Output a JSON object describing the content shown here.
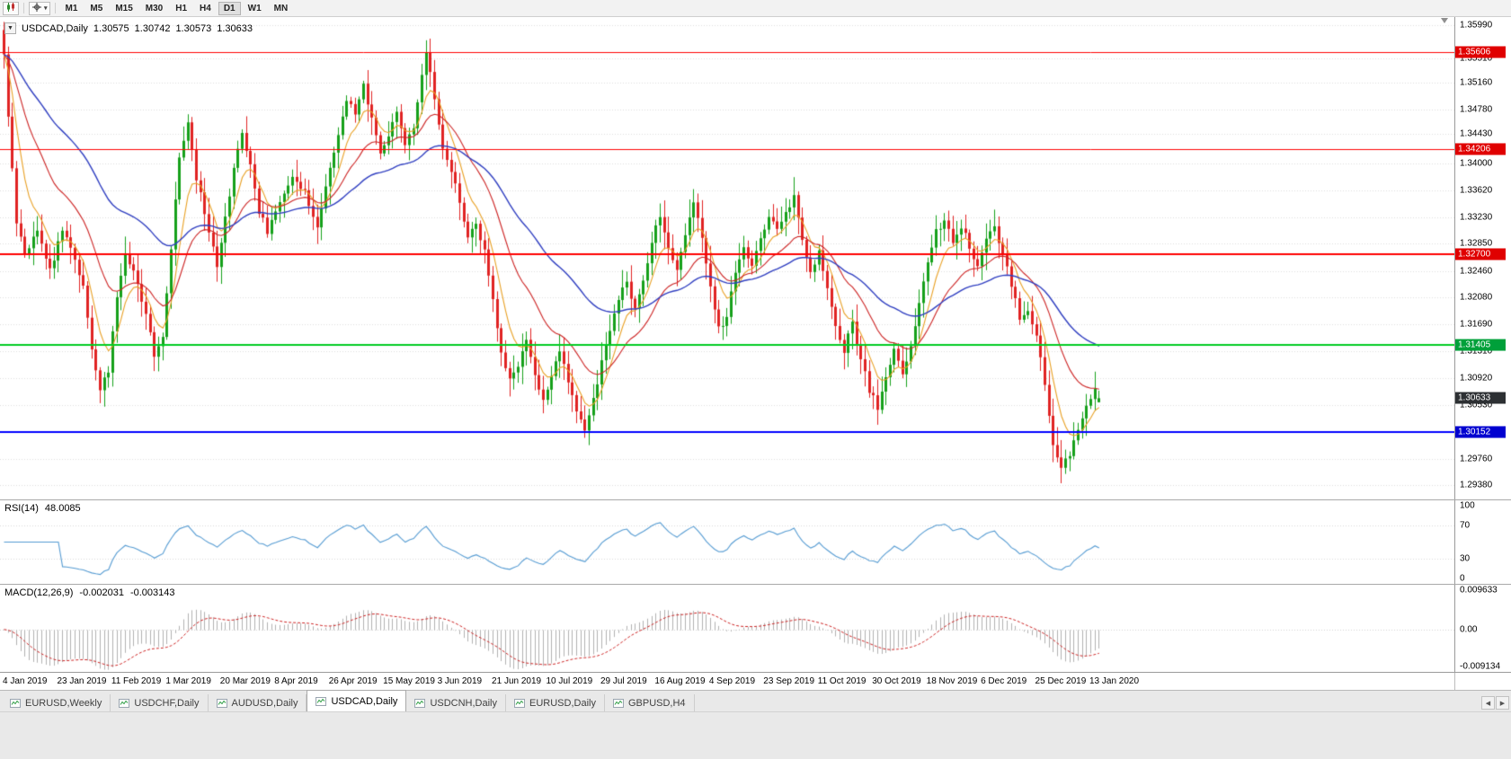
{
  "colors": {
    "up": "#15a01a",
    "down": "#e02222",
    "ma_fast": "#e8a024",
    "ma_mid": "#cc2222",
    "ma_slow": "#2f3ec0",
    "rsi_line": "#559bd2",
    "macd_hist": "#b0b0b0",
    "macd_signal": "#cc2222",
    "grid": "#dedede",
    "current_badge_bg": "#2d3033"
  },
  "toolbar": {
    "chart_button_icon": "candlestick-chart-icon",
    "crosshair_button_icon": "crosshair-icon",
    "caret": "▾",
    "timeframes": [
      "M1",
      "M5",
      "M15",
      "M30",
      "H1",
      "H4",
      "D1",
      "W1",
      "MN"
    ],
    "active_timeframe": "D1"
  },
  "price_pane": {
    "collapse_icon": "▼",
    "symbol_label": "USDCAD,Daily",
    "open": "1.30575",
    "high": "1.30742",
    "low": "1.30573",
    "close": "1.30633",
    "axis_ticks": [
      "1.35990",
      "1.35510",
      "1.35160",
      "1.34780",
      "1.34430",
      "1.34000",
      "1.33620",
      "1.33230",
      "1.32850",
      "1.32460",
      "1.32080",
      "1.31690",
      "1.31310",
      "1.30920",
      "1.30530",
      "1.29760",
      "1.29380"
    ],
    "current_price_badge": "1.30633"
  },
  "rsi_pane": {
    "label": "RSI(14)",
    "value": "48.0085",
    "axis_ticks": [
      "100",
      "70",
      "30",
      "0"
    ]
  },
  "macd_pane": {
    "label": "MACD(12,26,9)",
    "value_1": "-0.002031",
    "value_2": "-0.003143",
    "axis_ticks": [
      "0.009633",
      "0.00",
      "-0.009134"
    ],
    "range_max": 0.009633,
    "range_min": -0.009134
  },
  "date_axis": {
    "labels": [
      "4 Jan 2019",
      "23 Jan 2019",
      "11 Feb 2019",
      "1 Mar 2019",
      "20 Mar 2019",
      "8 Apr 2019",
      "26 Apr 2019",
      "15 May 2019",
      "3 Jun 2019",
      "21 Jun 2019",
      "10 Jul 2019",
      "29 Jul 2019",
      "16 Aug 2019",
      "4 Sep 2019",
      "23 Sep 2019",
      "11 Oct 2019",
      "30 Oct 2019",
      "18 Nov 2019",
      "6 Dec 2019",
      "25 Dec 2019",
      "13 Jan 2020"
    ],
    "label_every_days": 13
  },
  "tabbar": {
    "tabs": [
      {
        "label": "EURUSD,Weekly",
        "active": false
      },
      {
        "label": "USDCHF,Daily",
        "active": false
      },
      {
        "label": "AUDUSD,Daily",
        "active": false
      },
      {
        "label": "USDCAD,Daily",
        "active": true
      },
      {
        "label": "USDCNH,Daily",
        "active": false
      },
      {
        "label": "EURUSD,Daily",
        "active": false
      },
      {
        "label": "GBPUSD,H4",
        "active": false
      }
    ],
    "scroll_left": "◀",
    "scroll_right": "▶"
  },
  "chart_data": {
    "type": "candlestick",
    "title": "USDCAD,Daily",
    "x_start_label": "4 Jan 2019",
    "x_end_label": "13 Jan 2020",
    "days_total": 263,
    "y_axis": {
      "min": 1.2918,
      "max": 1.3612
    },
    "last_candle": {
      "open": 1.30575,
      "high": 1.30742,
      "low": 1.30573,
      "close": 1.30633
    },
    "price_anchors": [
      [
        0,
        1.356
      ],
      [
        1,
        1.3468
      ],
      [
        2,
        1.3392
      ],
      [
        3,
        1.332
      ],
      [
        5,
        1.3268
      ],
      [
        8,
        1.3302
      ],
      [
        11,
        1.3246
      ],
      [
        14,
        1.3308
      ],
      [
        17,
        1.3262
      ],
      [
        19,
        1.3226
      ],
      [
        21,
        1.3132
      ],
      [
        23,
        1.3076
      ],
      [
        25,
        1.3102
      ],
      [
        27,
        1.3208
      ],
      [
        29,
        1.3268
      ],
      [
        31,
        1.3242
      ],
      [
        34,
        1.3182
      ],
      [
        36,
        1.3126
      ],
      [
        38,
        1.3156
      ],
      [
        40,
        1.3282
      ],
      [
        42,
        1.3408
      ],
      [
        44,
        1.3454
      ],
      [
        46,
        1.3382
      ],
      [
        49,
        1.3302
      ],
      [
        51,
        1.3256
      ],
      [
        53,
        1.3322
      ],
      [
        55,
        1.339
      ],
      [
        57,
        1.3442
      ],
      [
        59,
        1.3402
      ],
      [
        61,
        1.3332
      ],
      [
        63,
        1.3302
      ],
      [
        66,
        1.3342
      ],
      [
        69,
        1.3382
      ],
      [
        72,
        1.3356
      ],
      [
        75,
        1.3312
      ],
      [
        77,
        1.3362
      ],
      [
        80,
        1.3442
      ],
      [
        82,
        1.3492
      ],
      [
        84,
        1.3472
      ],
      [
        86,
        1.3512
      ],
      [
        88,
        1.3462
      ],
      [
        90,
        1.3412
      ],
      [
        92,
        1.3442
      ],
      [
        94,
        1.3472
      ],
      [
        96,
        1.3422
      ],
      [
        98,
        1.3452
      ],
      [
        100,
        1.3532
      ],
      [
        101,
        1.356
      ],
      [
        103,
        1.3492
      ],
      [
        105,
        1.3422
      ],
      [
        107,
        1.3392
      ],
      [
        109,
        1.3342
      ],
      [
        111,
        1.3292
      ],
      [
        113,
        1.3312
      ],
      [
        115,
        1.3272
      ],
      [
        117,
        1.3202
      ],
      [
        119,
        1.3132
      ],
      [
        121,
        1.3092
      ],
      [
        123,
        1.3112
      ],
      [
        125,
        1.3152
      ],
      [
        127,
        1.3092
      ],
      [
        129,
        1.3062
      ],
      [
        131,
        1.3092
      ],
      [
        133,
        1.3132
      ],
      [
        135,
        1.3082
      ],
      [
        137,
        1.3042
      ],
      [
        139,
        1.3022
      ],
      [
        141,
        1.3062
      ],
      [
        143,
        1.3112
      ],
      [
        145,
        1.3162
      ],
      [
        147,
        1.3202
      ],
      [
        149,
        1.3232
      ],
      [
        151,
        1.3192
      ],
      [
        153,
        1.3232
      ],
      [
        155,
        1.3292
      ],
      [
        157,
        1.3322
      ],
      [
        159,
        1.3282
      ],
      [
        161,
        1.3252
      ],
      [
        163,
        1.3302
      ],
      [
        165,
        1.3342
      ],
      [
        167,
        1.3292
      ],
      [
        169,
        1.3222
      ],
      [
        171,
        1.3162
      ],
      [
        173,
        1.3182
      ],
      [
        175,
        1.3242
      ],
      [
        177,
        1.3282
      ],
      [
        179,
        1.3252
      ],
      [
        181,
        1.3292
      ],
      [
        183,
        1.3322
      ],
      [
        185,
        1.3302
      ],
      [
        187,
        1.3332
      ],
      [
        189,
        1.3352
      ],
      [
        191,
        1.3292
      ],
      [
        193,
        1.3242
      ],
      [
        195,
        1.3272
      ],
      [
        197,
        1.3222
      ],
      [
        199,
        1.3162
      ],
      [
        201,
        1.3132
      ],
      [
        203,
        1.3172
      ],
      [
        205,
        1.3122
      ],
      [
        207,
        1.3072
      ],
      [
        209,
        1.3052
      ],
      [
        211,
        1.3092
      ],
      [
        213,
        1.3132
      ],
      [
        215,
        1.3092
      ],
      [
        217,
        1.3142
      ],
      [
        219,
        1.3202
      ],
      [
        221,
        1.3262
      ],
      [
        223,
        1.3302
      ],
      [
        225,
        1.3322
      ],
      [
        227,
        1.3292
      ],
      [
        229,
        1.3312
      ],
      [
        231,
        1.3282
      ],
      [
        233,
        1.3252
      ],
      [
        235,
        1.3292
      ],
      [
        237,
        1.3312
      ],
      [
        239,
        1.3272
      ],
      [
        241,
        1.3222
      ],
      [
        243,
        1.3182
      ],
      [
        245,
        1.3192
      ],
      [
        247,
        1.3152
      ],
      [
        249,
        1.3082
      ],
      [
        251,
        1.2992
      ],
      [
        253,
        1.2962
      ],
      [
        255,
        1.2982
      ],
      [
        257,
        1.3012
      ],
      [
        259,
        1.3048
      ],
      [
        261,
        1.3078
      ],
      [
        262,
        1.30633
      ]
    ],
    "moving_averages": [
      {
        "name": "fast",
        "period": 7,
        "color_key": "ma_fast"
      },
      {
        "name": "mid",
        "period": 20,
        "color_key": "ma_mid"
      },
      {
        "name": "slow",
        "period": 50,
        "color_key": "ma_slow"
      }
    ],
    "levels": [
      {
        "value": 1.35606,
        "label": "1.35606",
        "color": "#ff0000",
        "badge_bg": "#e00000",
        "line_width": 1
      },
      {
        "value": 1.34206,
        "label": "1.34206",
        "color": "#ff0000",
        "badge_bg": "#e00000",
        "line_width": 1
      },
      {
        "value": 1.327,
        "label": "1.32700",
        "color": "#ff0000",
        "badge_bg": "#e00000",
        "line_width": 2
      },
      {
        "value": 1.31405,
        "label": "1.31405",
        "color": "#00cc22",
        "badge_bg": "#00a03a",
        "line_width": 2
      },
      {
        "value": 1.30152,
        "label": "1.30152",
        "color": "#0000ff",
        "badge_bg": "#0000d0",
        "line_width": 2
      }
    ],
    "indicators": [
      {
        "name": "RSI",
        "params": "14",
        "current": "48.0085",
        "ticks": [
          100,
          70,
          30,
          0
        ]
      },
      {
        "name": "MACD",
        "params": "12,26,9",
        "current": [
          "-0.002031",
          "-0.003143"
        ],
        "range": [
          -0.009134,
          0.009633
        ]
      }
    ]
  }
}
